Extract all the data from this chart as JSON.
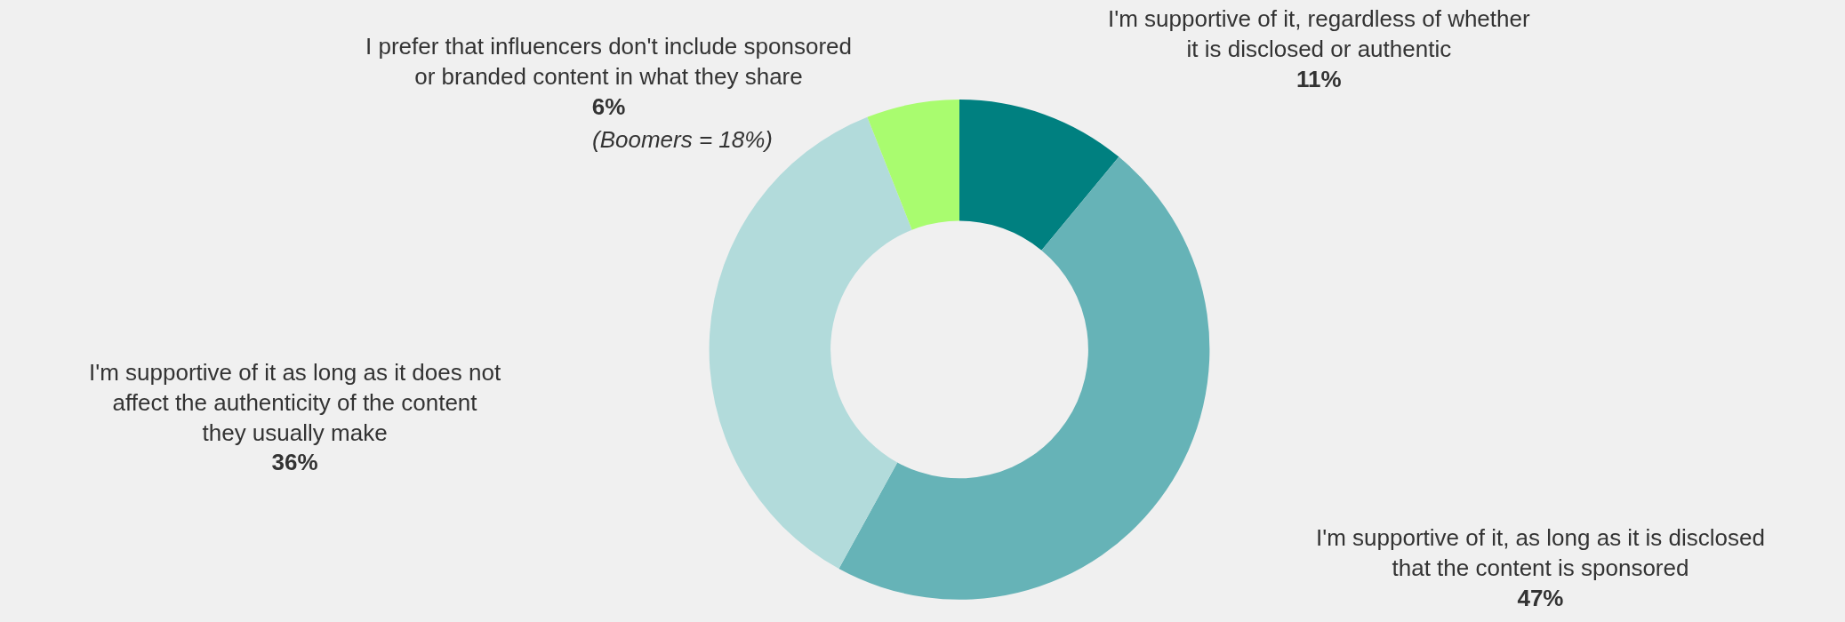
{
  "chart_data": {
    "type": "donut",
    "categories": [
      "I'm supportive of it, regardless of whether\nit is disclosed or authentic",
      "I'm supportive of it, as long as it is disclosed\nthat the content is sponsored",
      "I'm supportive of it as long as it does not\naffect the authenticity of the content\nthey usually make",
      "I prefer that influencers don't include sponsored\nor branded content in what they share"
    ],
    "values": [
      11,
      47,
      36,
      6
    ],
    "value_labels": [
      "11%",
      "47%",
      "36%",
      "6%"
    ],
    "colors": [
      "#008080",
      "#66b3b7",
      "#b2dbdb",
      "#a9fc6f"
    ],
    "annotations": [
      "(Boomers = 18%)"
    ],
    "legend": false
  }
}
